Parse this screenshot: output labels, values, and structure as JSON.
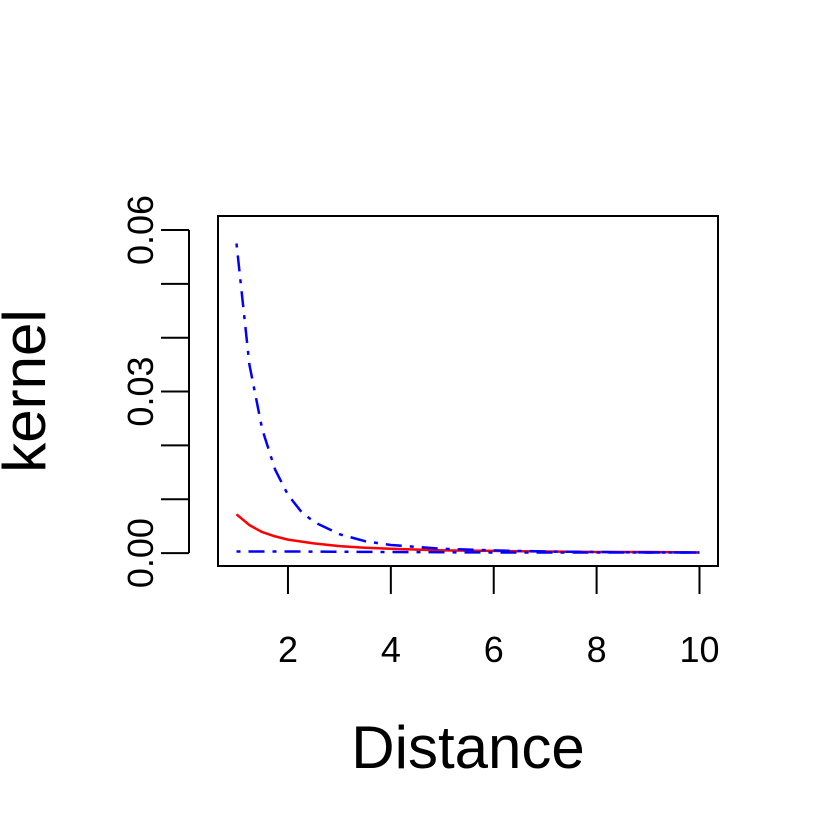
{
  "chart_data": {
    "type": "line",
    "title": "",
    "xlabel": "Distance",
    "ylabel": "kernel",
    "xlim": [
      0.64,
      10.36
    ],
    "ylim": [
      -0.0024,
      0.0626
    ],
    "x_ticks": [
      2,
      4,
      6,
      8,
      10
    ],
    "x_tick_labels": [
      "2",
      "4",
      "6",
      "8",
      "10"
    ],
    "y_ticks": [
      0.0,
      0.01,
      0.02,
      0.03,
      0.04,
      0.05,
      0.06
    ],
    "y_tick_labels": [
      "0.00",
      "",
      "",
      "0.03",
      "",
      "",
      "0.06"
    ],
    "grid": false,
    "series": [
      {
        "color": "#ff0000",
        "dash": "solid",
        "x": [
          1.0,
          1.25,
          1.5,
          1.75,
          2.0,
          2.5,
          3.0,
          3.5,
          4.0,
          5.0,
          6.0,
          7.0,
          8.0,
          9.0,
          10.0
        ],
        "y": [
          0.0072,
          0.0052,
          0.0039,
          0.0031,
          0.0025,
          0.0018,
          0.0013,
          0.001,
          0.0008,
          0.0005,
          0.0004,
          0.0003,
          0.0002,
          0.0002,
          0.0001
        ]
      },
      {
        "color": "#0000ff",
        "dash": "dotdash",
        "x": [
          1.0,
          1.25,
          1.5,
          1.75,
          2.0,
          2.25,
          2.5,
          3.0,
          3.5,
          4.0,
          5.0,
          6.0,
          7.0,
          8.0,
          9.0,
          10.0
        ],
        "y": [
          0.0575,
          0.035,
          0.023,
          0.0155,
          0.0108,
          0.0078,
          0.0058,
          0.0035,
          0.0022,
          0.0015,
          0.0008,
          0.0005,
          0.0003,
          0.0002,
          0.0001,
          0.0001
        ]
      },
      {
        "color": "#0000ff",
        "dash": "dotdash",
        "x": [
          1.0,
          2.0,
          4.0,
          6.0,
          8.0,
          10.0
        ],
        "y": [
          0.0003,
          0.0003,
          0.0002,
          0.0001,
          0.0001,
          0.0001
        ]
      }
    ]
  }
}
